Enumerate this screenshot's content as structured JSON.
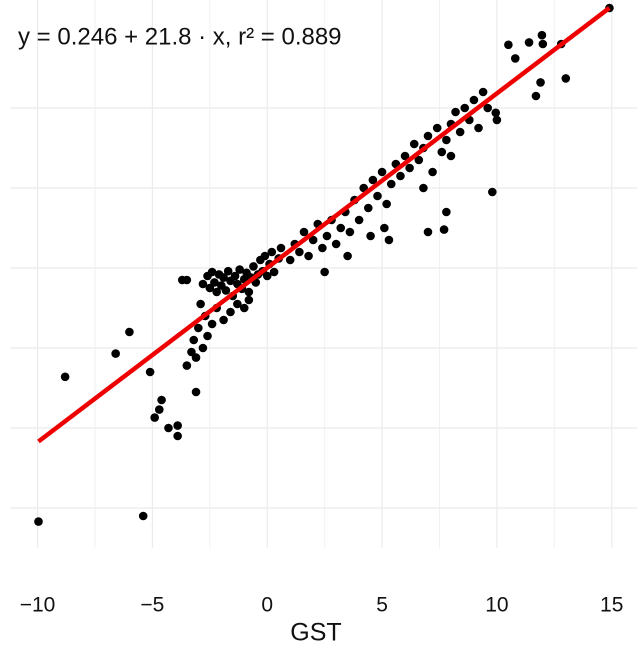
{
  "chart_data": {
    "type": "scatter",
    "annotation": "y = 0.246 + 21.8 · x,  r² = 0.889",
    "x_label": "GST",
    "color": "#000000",
    "fit": {
      "intercept": 0.246,
      "slope": 21.8,
      "color": "#ee0000"
    },
    "xlim": [
      -11.2,
      16.1
    ],
    "ylim": [
      -350,
      335
    ],
    "xticks": [
      {
        "value": -10,
        "label": "−10"
      },
      {
        "value": -5,
        "label": "−5"
      },
      0,
      5,
      10,
      15
    ],
    "xminor": [
      -7.5,
      -2.5,
      2.5,
      7.5,
      12.5
    ],
    "yticks": [
      -300,
      -200,
      -100,
      0,
      100,
      200
    ],
    "y_tick_labels": false,
    "grid": true,
    "x": [
      -9.96,
      -5.4,
      -8.8,
      -6.6,
      -6.0,
      -5.1,
      -4.6,
      -4.7,
      -4.9,
      -4.3,
      -3.9,
      -3.9,
      -3.1,
      -3.5,
      -3.3,
      -3.1,
      -3.7,
      -3.5,
      9.8,
      7.8,
      7.7,
      7.0,
      5.3,
      5.1,
      10.5,
      11.4,
      11.96,
      12.0,
      12.8,
      11.7,
      11.9,
      13.0,
      14.9,
      10.8,
      9.95,
      10.0,
      -2.8,
      -2.6,
      -2.5,
      -2.4,
      -2.3,
      -2.2,
      -2.1,
      -2.0,
      -1.9,
      -1.8,
      -1.7,
      -1.6,
      -1.5,
      -1.4,
      -1.3,
      -1.2,
      -1.1,
      -1.0,
      -0.9,
      -0.8,
      -0.7,
      -0.6,
      -0.5,
      -0.4,
      -0.3,
      -0.2,
      -0.1,
      0.0,
      0.1,
      0.2,
      0.3,
      0.5,
      0.6,
      -2.9,
      -2.7,
      -2.4,
      -2.2,
      -1.9,
      -1.6,
      -1.3,
      -1.0,
      -2.6,
      -3.2,
      -2.8,
      -3.0,
      -0.8,
      1.0,
      1.2,
      1.4,
      1.6,
      1.8,
      2.0,
      2.2,
      2.4,
      2.6,
      2.8,
      3.0,
      3.2,
      3.4,
      3.6,
      3.8,
      4.0,
      4.2,
      4.4,
      4.6,
      4.8,
      5.0,
      5.2,
      5.4,
      5.6,
      5.8,
      6.0,
      6.2,
      6.4,
      6.6,
      6.8,
      7.0,
      7.2,
      7.4,
      7.6,
      7.8,
      8.0,
      8.2,
      8.4,
      8.6,
      8.8,
      9.0,
      9.2,
      9.4,
      9.6,
      2.5,
      3.5,
      4.5,
      6.8,
      8.0
    ],
    "y": [
      -317,
      -310,
      -136,
      -107,
      -80,
      -130,
      -165,
      -177,
      -187,
      -200,
      -210,
      -197,
      -155,
      -122,
      -105,
      -112,
      -15,
      -15,
      95,
      70,
      48,
      45,
      35,
      50,
      279,
      282,
      291,
      280,
      280,
      215,
      232,
      237,
      325,
      262,
      194,
      185,
      -20,
      -10,
      -25,
      -5,
      -18,
      -30,
      -8,
      -22,
      -12,
      -28,
      -4,
      -16,
      -35,
      -10,
      -20,
      -2,
      -26,
      -14,
      -6,
      -30,
      -12,
      2,
      -18,
      -8,
      10,
      -4,
      15,
      -10,
      5,
      20,
      -5,
      12,
      25,
      -45,
      -60,
      -70,
      -50,
      -65,
      -55,
      -45,
      -50,
      -85,
      -90,
      -100,
      -75,
      -40,
      10,
      30,
      20,
      45,
      15,
      35,
      55,
      25,
      40,
      60,
      30,
      50,
      70,
      45,
      85,
      60,
      100,
      75,
      110,
      90,
      120,
      80,
      105,
      130,
      115,
      140,
      125,
      155,
      135,
      150,
      165,
      120,
      175,
      145,
      160,
      180,
      195,
      170,
      200,
      185,
      210,
      175,
      220,
      200,
      -5,
      15,
      40,
      100,
      140
    ]
  }
}
